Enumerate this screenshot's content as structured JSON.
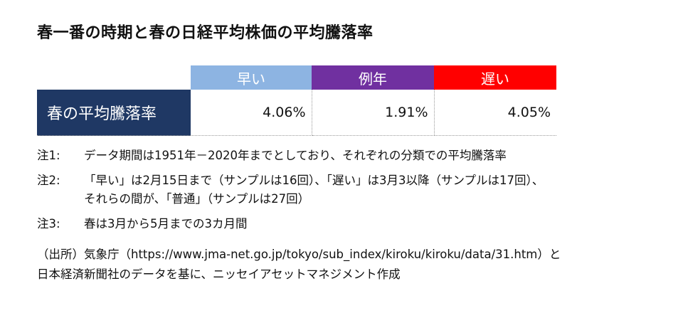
{
  "title": "春一番の時期と春の日経平均株価の平均騰落率",
  "table": {
    "header": [
      "早い",
      "例年",
      "遅い"
    ],
    "rows": [
      [
        "春の平均騰落率",
        "4.06%",
        "1.91%",
        "4.05%"
      ]
    ]
  },
  "notes": [
    {
      "label": "注1:",
      "lines": [
        "データ期間は1951年－2020年までとしており、それぞれの分類での平均騰落率"
      ]
    },
    {
      "label": "注2:",
      "lines": [
        "「早い」は2月15日まで（サンプルは16回）、「遅い」は3月3以降（サンプルは17回）、",
        "それらの間が、「普通」（サンプルは27回）"
      ]
    },
    {
      "label": "注3:",
      "lines": [
        "春は3月から5月までの3カ月間"
      ]
    }
  ],
  "source": [
    "（出所）気象庁（https://www.jma-net.go.jp/tokyo/sub_index/kiroku/kiroku/data/31.htm）と",
    "日本経済新聞社のデータを基に、ニッセイアセットマネジメント作成"
  ]
}
